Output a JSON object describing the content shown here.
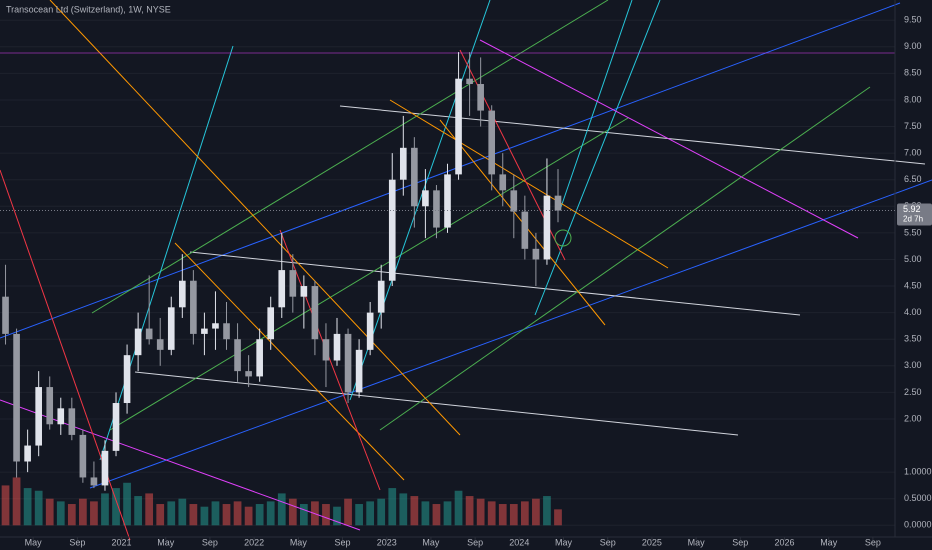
{
  "chart_data": {
    "type": "candlestick",
    "title": "Transocean Ltd (Switzerland), 1W, NYSE",
    "x": [
      "2020-02",
      "2020-03",
      "2020-04",
      "2020-05",
      "2020-06",
      "2020-07",
      "2020-08",
      "2020-09",
      "2020-10",
      "2020-11",
      "2020-12",
      "2021-01",
      "2021-02",
      "2021-03",
      "2021-04",
      "2021-05",
      "2021-06",
      "2021-07",
      "2021-08",
      "2021-09",
      "2021-10",
      "2021-11",
      "2021-12",
      "2022-01",
      "2022-02",
      "2022-03",
      "2022-04",
      "2022-05",
      "2022-06",
      "2022-07",
      "2022-08",
      "2022-09",
      "2022-10",
      "2022-11",
      "2022-12",
      "2023-01",
      "2023-02",
      "2023-03",
      "2023-04",
      "2023-05",
      "2023-06",
      "2023-07",
      "2023-08",
      "2023-09",
      "2023-10",
      "2023-11",
      "2023-12",
      "2024-01",
      "2024-02",
      "2024-03",
      "2024-04"
    ],
    "open": [
      4.3,
      3.6,
      1.2,
      1.5,
      2.6,
      1.9,
      2.2,
      1.7,
      0.9,
      0.75,
      1.4,
      2.3,
      3.2,
      3.7,
      3.5,
      3.3,
      4.1,
      4.6,
      3.6,
      3.7,
      3.8,
      3.5,
      2.9,
      2.8,
      3.5,
      4.1,
      4.8,
      4.3,
      4.5,
      3.5,
      3.1,
      3.6,
      2.5,
      3.3,
      4.0,
      4.6,
      6.5,
      7.1,
      6.0,
      6.3,
      5.6,
      6.6,
      8.4,
      8.3,
      7.8,
      6.6,
      6.3,
      5.9,
      5.2,
      5.0,
      6.2
    ],
    "high": [
      4.9,
      3.7,
      1.8,
      2.9,
      2.8,
      2.4,
      2.4,
      1.8,
      1.2,
      1.6,
      2.5,
      3.4,
      4.0,
      4.7,
      3.9,
      4.3,
      5.1,
      4.8,
      4.0,
      4.4,
      4.2,
      3.8,
      3.2,
      3.7,
      4.3,
      5.5,
      5.1,
      4.7,
      4.6,
      3.8,
      3.9,
      3.7,
      3.5,
      4.2,
      4.9,
      7.0,
      7.7,
      7.3,
      6.7,
      6.4,
      6.8,
      8.9,
      8.9,
      8.8,
      7.9,
      7.0,
      6.6,
      6.2,
      5.5,
      6.9,
      6.7
    ],
    "low": [
      3.4,
      0.9,
      1.0,
      1.3,
      1.8,
      1.7,
      1.6,
      0.8,
      0.7,
      0.65,
      1.3,
      2.1,
      2.9,
      3.4,
      3.0,
      3.2,
      3.9,
      3.4,
      3.2,
      3.3,
      3.3,
      2.7,
      2.6,
      2.7,
      3.3,
      3.9,
      4.0,
      3.7,
      3.2,
      2.6,
      3.0,
      2.3,
      2.4,
      3.2,
      3.7,
      4.5,
      6.2,
      5.6,
      5.4,
      5.4,
      5.5,
      6.5,
      7.7,
      7.5,
      6.3,
      6.0,
      5.4,
      5.0,
      4.5,
      4.9,
      5.7
    ],
    "close": [
      3.6,
      1.2,
      1.5,
      2.6,
      1.9,
      2.2,
      1.7,
      0.9,
      0.75,
      1.4,
      2.3,
      3.2,
      3.7,
      3.5,
      3.3,
      4.1,
      4.6,
      3.6,
      3.7,
      3.8,
      3.5,
      2.9,
      2.8,
      3.5,
      4.1,
      4.8,
      4.3,
      4.5,
      3.5,
      3.1,
      3.6,
      2.5,
      3.3,
      4.0,
      4.6,
      6.5,
      7.1,
      6.0,
      6.3,
      5.6,
      6.6,
      8.4,
      8.3,
      7.8,
      6.6,
      6.3,
      5.9,
      5.2,
      5.0,
      6.2,
      5.92
    ],
    "volume": [
      0.75,
      0.9,
      0.7,
      0.65,
      0.5,
      0.45,
      0.4,
      0.5,
      0.45,
      0.6,
      0.7,
      0.8,
      0.55,
      0.6,
      0.4,
      0.45,
      0.5,
      0.4,
      0.35,
      0.45,
      0.4,
      0.45,
      0.35,
      0.4,
      0.45,
      0.6,
      0.5,
      0.4,
      0.45,
      0.4,
      0.35,
      0.5,
      0.4,
      0.45,
      0.5,
      0.7,
      0.6,
      0.55,
      0.45,
      0.4,
      0.45,
      0.65,
      0.55,
      0.5,
      0.45,
      0.4,
      0.4,
      0.45,
      0.5,
      0.55,
      0.3
    ],
    "up_color": "#e0e3eb",
    "down_color": "#9598a1",
    "volume_up_color": "#26a69a",
    "volume_down_color": "#ef5350",
    "last_price": 5.92,
    "countdown": "2d 7h",
    "ylim": [
      -0.22,
      9.88
    ],
    "yticks": [
      {
        "value": 0,
        "label": "0.0000"
      },
      {
        "value": 0.5,
        "label": "0.5000"
      },
      {
        "value": 1,
        "label": "1.0000"
      },
      {
        "value": 2,
        "label": "2.00"
      },
      {
        "value": 2.5,
        "label": "2.50"
      },
      {
        "value": 3,
        "label": "3.00"
      },
      {
        "value": 3.5,
        "label": "3.50"
      },
      {
        "value": 4,
        "label": "4.00"
      },
      {
        "value": 4.5,
        "label": "4.50"
      },
      {
        "value": 5,
        "label": "5.00"
      },
      {
        "value": 5.5,
        "label": "5.50"
      },
      {
        "value": 6,
        "label": "6.00"
      },
      {
        "value": 6.5,
        "label": "6.50"
      },
      {
        "value": 7,
        "label": "7.00"
      },
      {
        "value": 7.5,
        "label": "7.50"
      },
      {
        "value": 8,
        "label": "8.00"
      },
      {
        "value": 8.5,
        "label": "8.50"
      },
      {
        "value": 9,
        "label": "9.00"
      },
      {
        "value": 9.5,
        "label": "9.50"
      }
    ],
    "xlim": [
      "2020-02",
      "2026-11"
    ],
    "xticks": [
      {
        "value": "2020-05",
        "label": "May"
      },
      {
        "value": "2020-09",
        "label": "Sep"
      },
      {
        "value": "2021-01",
        "label": "2021"
      },
      {
        "value": "2021-05",
        "label": "May"
      },
      {
        "value": "2021-09",
        "label": "Sep"
      },
      {
        "value": "2022-01",
        "label": "2022"
      },
      {
        "value": "2022-05",
        "label": "May"
      },
      {
        "value": "2022-09",
        "label": "Sep"
      },
      {
        "value": "2023-01",
        "label": "2023"
      },
      {
        "value": "2023-05",
        "label": "May"
      },
      {
        "value": "2023-09",
        "label": "Sep"
      },
      {
        "value": "2024-01",
        "label": "2024"
      },
      {
        "value": "2024-05",
        "label": "May"
      },
      {
        "value": "2024-09",
        "label": "Sep"
      },
      {
        "value": "2025-01",
        "label": "2025"
      },
      {
        "value": "2025-05",
        "label": "May"
      },
      {
        "value": "2025-09",
        "label": "Sep"
      },
      {
        "value": "2026-01",
        "label": "2026"
      },
      {
        "value": "2026-05",
        "label": "May"
      },
      {
        "value": "2026-09",
        "label": "Sep"
      }
    ]
  }
}
